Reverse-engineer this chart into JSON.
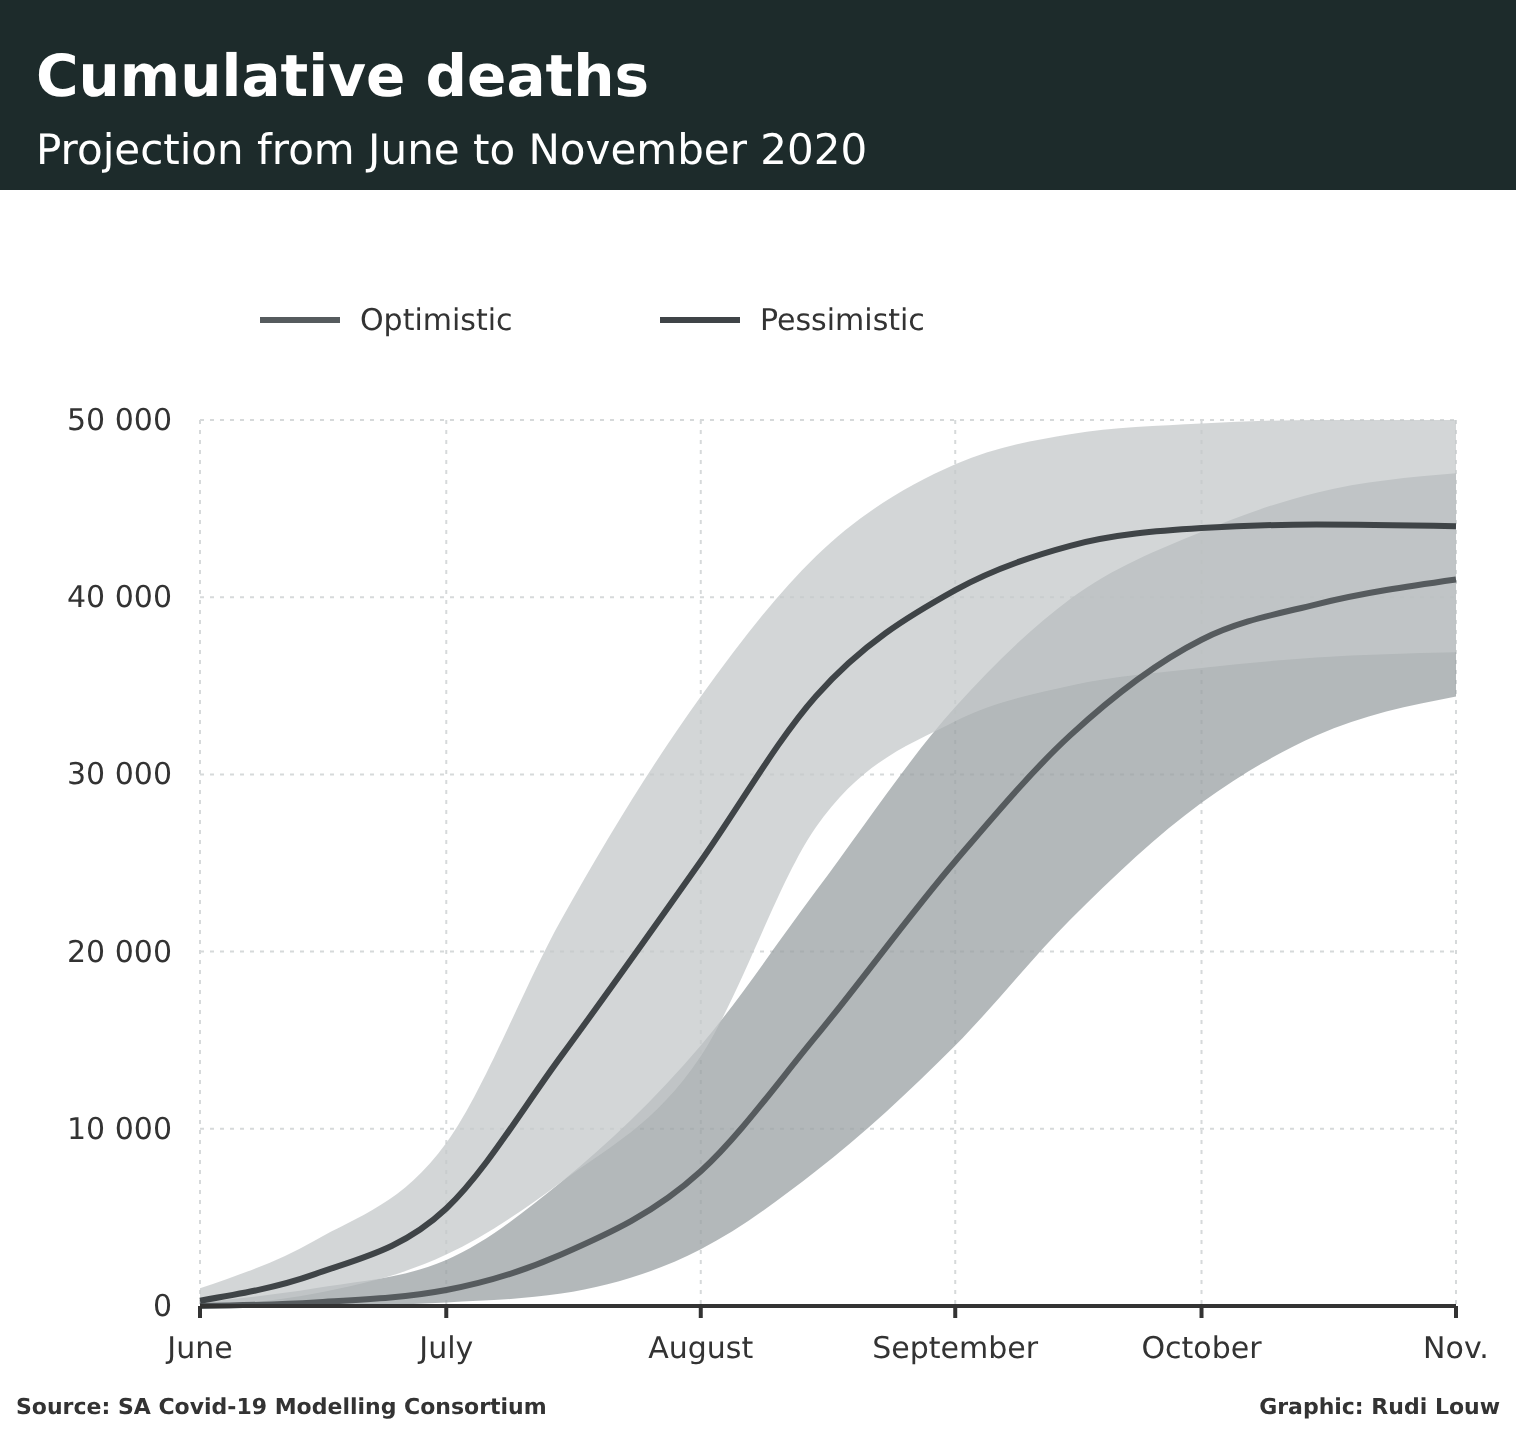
{
  "chart_data": {
    "type": "line",
    "title": "Cumulative deaths",
    "subtitle": "Projection from June to November 2020",
    "x": [
      "2020-06-01",
      "2020-06-15",
      "2020-07-01",
      "2020-07-15",
      "2020-08-01",
      "2020-08-15",
      "2020-09-01",
      "2020-09-15",
      "2020-10-01",
      "2020-10-15",
      "2020-11-01"
    ],
    "series": [
      {
        "name": "Optimistic",
        "color": "#565b5e",
        "values": [
          0,
          200,
          900,
          2900,
          7600,
          15200,
          25100,
          32200,
          37600,
          39600,
          41000
        ],
        "lower": [
          0,
          0,
          200,
          700,
          3200,
          7600,
          14700,
          21800,
          28400,
          32200,
          34400
        ],
        "upper": [
          200,
          1000,
          2600,
          7000,
          14700,
          23400,
          33800,
          39900,
          43700,
          45900,
          47000
        ]
      },
      {
        "name": "Pessimistic",
        "color": "#3f4447",
        "values": [
          300,
          1800,
          5500,
          14100,
          25100,
          34400,
          40400,
          42900,
          43900,
          44100,
          44000
        ],
        "lower": [
          0,
          700,
          2900,
          7000,
          14100,
          27000,
          33000,
          35000,
          36000,
          36600,
          36900
        ],
        "upper": [
          1000,
          3700,
          9200,
          21800,
          34400,
          42300,
          47500,
          49200,
          49800,
          50000,
          50000
        ]
      }
    ],
    "xlim": [
      "2020-06-01",
      "2020-11-01"
    ],
    "xticks": [
      {
        "value": "2020-06-01",
        "label": "June"
      },
      {
        "value": "2020-07-01",
        "label": "July"
      },
      {
        "value": "2020-08-01",
        "label": "August"
      },
      {
        "value": "2020-09-01",
        "label": "September"
      },
      {
        "value": "2020-10-01",
        "label": "October"
      },
      {
        "value": "2020-11-01",
        "label": "Nov."
      }
    ],
    "ylim": [
      0,
      50000
    ],
    "yticks": [
      {
        "value": 0,
        "label": "0"
      },
      {
        "value": 10000,
        "label": "10 000"
      },
      {
        "value": 20000,
        "label": "20 000"
      },
      {
        "value": 30000,
        "label": "30 000"
      },
      {
        "value": 40000,
        "label": "40 000"
      },
      {
        "value": 50000,
        "label": "50 000"
      }
    ],
    "grid": true,
    "legend": "top",
    "marker": "none",
    "line_style": "solid",
    "annotations": [
      "Source: SA Covid-19 Modelling Consortium",
      "Graphic: Rudi Louw"
    ]
  }
}
